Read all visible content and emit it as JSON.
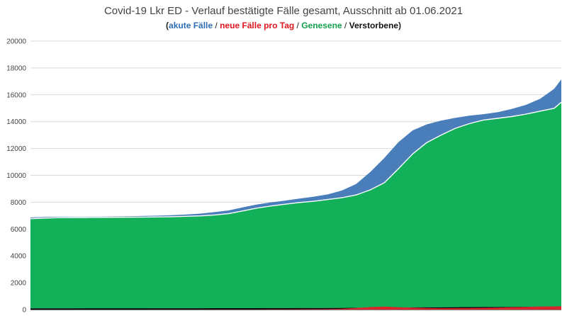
{
  "chart_data": {
    "type": "area",
    "title": "Covid-19 Lkr ED - Verlauf bestätigte Fälle gesamt, Ausschnitt ab 01.06.2021",
    "subtitle": {
      "open": "(",
      "close": ")",
      "separator": " / ",
      "parts": [
        "akute Fälle",
        "neue Fälle pro Tag",
        "Genesene",
        "Verstorbene"
      ]
    },
    "ylim": [
      0,
      20000
    ],
    "yticks": [
      "0",
      "2000",
      "4000",
      "6000",
      "8000",
      "10000",
      "12000",
      "14000",
      "16000",
      "18000",
      "20000"
    ],
    "grid": true,
    "colors": {
      "akute": "#4a7ebb",
      "neue": "#d9262c",
      "genesene": "#13b05a",
      "verstorbene": "#000000",
      "axis": "#888888",
      "grid": "#d9d9d9"
    },
    "x": [
      0,
      10,
      20,
      30,
      40,
      50,
      60,
      70,
      80,
      90,
      100,
      110,
      120,
      130,
      140,
      150,
      160,
      170,
      180,
      190,
      200,
      210,
      220,
      230,
      240,
      250,
      260,
      270,
      280,
      290,
      300,
      310,
      320,
      330,
      340,
      350,
      360,
      370,
      375
    ],
    "series": [
      {
        "key": "total",
        "values": [
          6860,
          6900,
          6920,
          6920,
          6920,
          6930,
          6940,
          6950,
          6980,
          7000,
          7030,
          7080,
          7150,
          7260,
          7390,
          7620,
          7830,
          7990,
          8120,
          8270,
          8410,
          8580,
          8870,
          9350,
          10250,
          11300,
          12480,
          13350,
          13800,
          14080,
          14280,
          14450,
          14560,
          14700,
          14950,
          15250,
          15700,
          16450,
          17150
        ]
      },
      {
        "key": "genesene",
        "values": [
          6770,
          6820,
          6850,
          6860,
          6860,
          6870,
          6875,
          6880,
          6890,
          6900,
          6920,
          6950,
          6980,
          7050,
          7150,
          7350,
          7560,
          7720,
          7850,
          7980,
          8070,
          8200,
          8330,
          8540,
          8920,
          9450,
          10500,
          11600,
          12450,
          13000,
          13500,
          13850,
          14120,
          14250,
          14380,
          14560,
          14780,
          15000,
          15450
        ]
      },
      {
        "key": "verstorbene",
        "values": [
          95,
          96,
          97,
          97,
          98,
          98,
          98,
          99,
          99,
          100,
          100,
          101,
          102,
          103,
          104,
          106,
          108,
          110,
          112,
          115,
          118,
          122,
          126,
          132,
          140,
          148,
          156,
          164,
          170,
          176,
          182,
          188,
          194,
          200,
          206,
          212,
          220,
          228,
          232
        ]
      },
      {
        "key": "neue",
        "values": [
          2,
          1,
          1,
          0,
          0,
          1,
          1,
          1,
          2,
          3,
          4,
          5,
          7,
          10,
          14,
          16,
          18,
          20,
          22,
          25,
          30,
          40,
          70,
          120,
          190,
          220,
          180,
          150,
          120,
          100,
          110,
          120,
          130,
          150,
          180,
          200,
          220,
          240,
          250
        ]
      }
    ]
  }
}
